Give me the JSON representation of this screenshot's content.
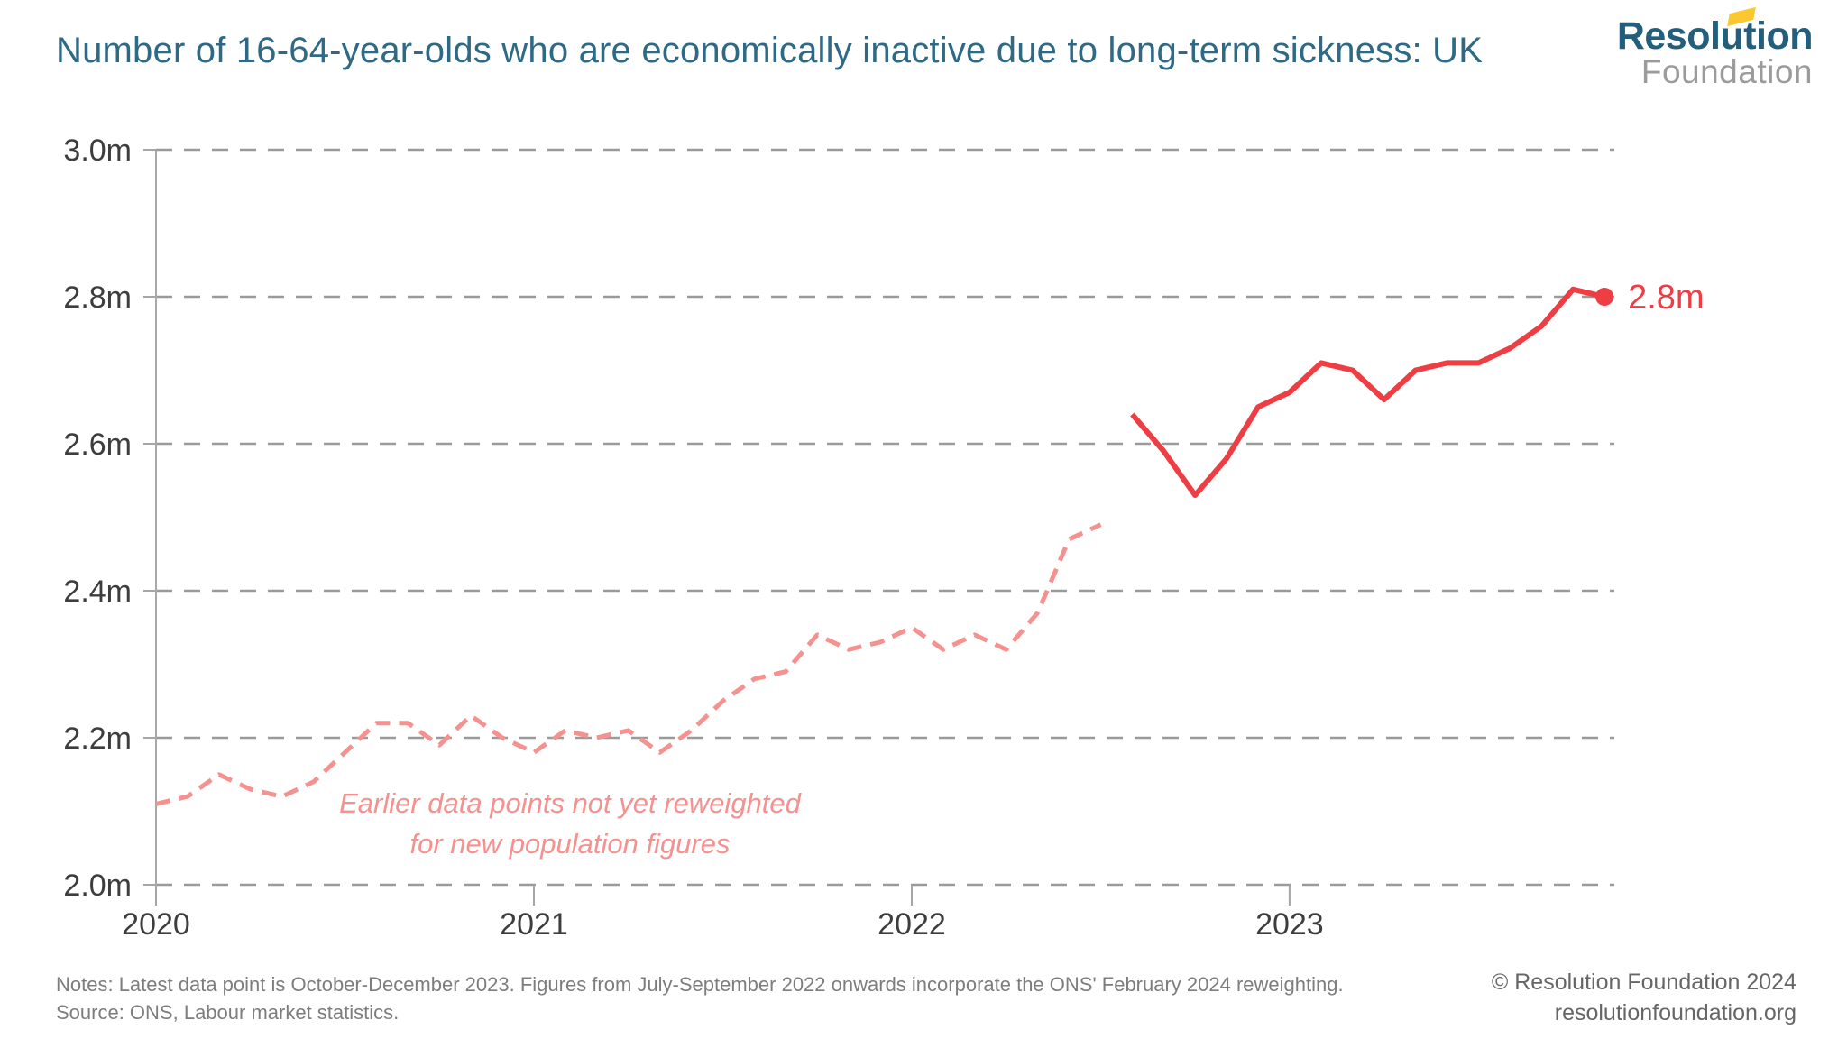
{
  "header": {
    "title": "Number of 16-64-year-olds who are economically inactive due to long-term sickness: UK"
  },
  "logo": {
    "line1": "Resolution",
    "line2": "Foundation",
    "accent_color": "#fdc72f"
  },
  "annotation": {
    "line1": "Earlier data points not yet reweighted",
    "line2": "for new population figures"
  },
  "footer": {
    "notes_line1": "Notes: Latest data point is October-December 2023. Figures from July-September 2022 onwards incorporate the ONS' February 2024 reweighting.",
    "notes_line2": "Source: ONS, Labour market statistics.",
    "copyright": "© Resolution Foundation 2024",
    "website": "resolutionfoundation.org"
  },
  "colors": {
    "title_teal": "#2e6a85",
    "logo_teal": "#235e7c",
    "logo_yellow": "#fdc72f",
    "grid_gray": "#9a9a9a",
    "axis_label_gray": "#3d3d3d",
    "notes_gray": "#7d7d7d",
    "solid_red": "#ee3e43",
    "dashed_pink": "#f5918e"
  },
  "chart_data": {
    "type": "line",
    "title": "Number of 16-64-year-olds who are economically inactive due to long-term sickness: UK",
    "unit": "millions of people",
    "x_frequency": "monthly rolling 3-month periods",
    "x_start": "2020-01",
    "x_end": "2023-11 (October-December 2023)",
    "ylim": [
      2.0,
      3.0
    ],
    "grid": "horizontal dashed",
    "legend": "none",
    "y_ticks": [
      {
        "label": "3.0m",
        "value": 3.0
      },
      {
        "label": "2.8m",
        "value": 2.8
      },
      {
        "label": "2.6m",
        "value": 2.6
      },
      {
        "label": "2.4m",
        "value": 2.4
      },
      {
        "label": "2.2m",
        "value": 2.2
      },
      {
        "label": "2.0m",
        "value": 2.0
      }
    ],
    "x_ticks": [
      {
        "label": "2020",
        "month_index": 0
      },
      {
        "label": "2021",
        "month_index": 12
      },
      {
        "label": "2022",
        "month_index": 24
      },
      {
        "label": "2023",
        "month_index": 36
      }
    ],
    "series": [
      {
        "id": "earlier-not-reweighted",
        "style": "dashed",
        "color": "#f5918e",
        "start_month_index": 0,
        "values": [
          2.11,
          2.12,
          2.15,
          2.13,
          2.12,
          2.14,
          2.18,
          2.22,
          2.22,
          2.19,
          2.23,
          2.2,
          2.18,
          2.21,
          2.2,
          2.21,
          2.18,
          2.21,
          2.25,
          2.28,
          2.29,
          2.34,
          2.32,
          2.33,
          2.35,
          2.32,
          2.34,
          2.32,
          2.37,
          2.47,
          2.49
        ]
      },
      {
        "id": "reweighted",
        "style": "solid",
        "color": "#ee3e43",
        "start_month_index": 31,
        "values": [
          2.64,
          2.59,
          2.53,
          2.58,
          2.65,
          2.67,
          2.71,
          2.7,
          2.66,
          2.7,
          2.71,
          2.71,
          2.73,
          2.76,
          2.81,
          2.8
        ]
      }
    ],
    "end_label": "2.8m"
  }
}
